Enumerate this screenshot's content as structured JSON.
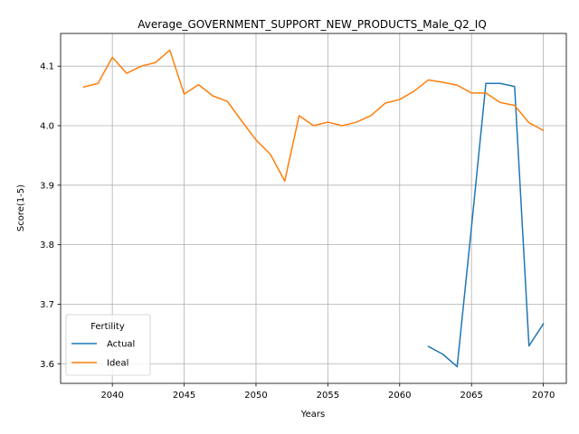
{
  "chart_data": {
    "type": "line",
    "title": "Average_GOVERNMENT_SUPPORT_NEW_PRODUCTS_Male_Q2_IQ",
    "xlabel": "Years",
    "ylabel": "Score(1-5)",
    "xlim": [
      2036.4,
      2071.6
    ],
    "ylim": [
      3.567,
      4.155
    ],
    "xticks": [
      2040,
      2045,
      2050,
      2055,
      2060,
      2065,
      2070
    ],
    "yticks": [
      3.6,
      3.7,
      3.8,
      3.9,
      4.0,
      4.1
    ],
    "grid": true,
    "legend": {
      "title": "Fertility",
      "position": "lower-left"
    },
    "series": [
      {
        "name": "Actual",
        "color": "#1f77b4",
        "x": [
          2062,
          2063,
          2064,
          2065,
          2066,
          2067,
          2068,
          2069,
          2070
        ],
        "y": [
          3.629,
          3.616,
          3.595,
          3.83,
          4.071,
          4.071,
          4.066,
          3.63,
          3.667
        ]
      },
      {
        "name": "Ideal",
        "color": "#ff7f0e",
        "x": [
          2038,
          2039,
          2040,
          2041,
          2042,
          2043,
          2044,
          2045,
          2046,
          2047,
          2048,
          2049,
          2050,
          2051,
          2052,
          2053,
          2054,
          2055,
          2056,
          2057,
          2058,
          2059,
          2060,
          2061,
          2062,
          2063,
          2064,
          2065,
          2066,
          2067,
          2068,
          2069,
          2070
        ],
        "y": [
          4.065,
          4.071,
          4.115,
          4.088,
          4.1,
          4.106,
          4.127,
          4.053,
          4.069,
          4.05,
          4.041,
          4.008,
          3.976,
          3.952,
          3.907,
          4.017,
          4.0,
          4.006,
          4.0,
          4.006,
          4.017,
          4.038,
          4.044,
          4.058,
          4.077,
          4.073,
          4.068,
          4.055,
          4.055,
          4.039,
          4.034,
          4.005,
          3.992
        ]
      }
    ]
  }
}
